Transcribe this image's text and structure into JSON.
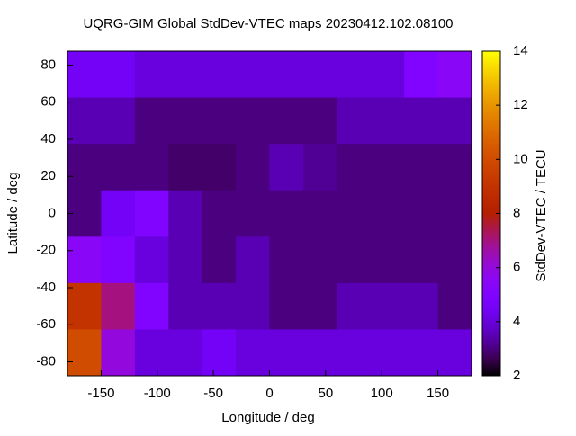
{
  "chart_data": {
    "type": "heatmap",
    "title": "UQRG-GIM Global StdDev-VTEC maps 20230412.102.08100",
    "x_label": "Longitude / deg",
    "y_label": "Latitude / deg",
    "colorbar_label": "StdDev-VTEC / TECU",
    "colormap": "gnuplot",
    "x": [
      -165,
      -135,
      -105,
      -75,
      -45,
      -15,
      15,
      45,
      75,
      105,
      135,
      165
    ],
    "y": [
      75,
      50,
      25,
      0,
      -25,
      -50,
      -75
    ],
    "z": [
      [
        4.5,
        4.5,
        4,
        4,
        4,
        4,
        4,
        4,
        4,
        4,
        5,
        5.5
      ],
      [
        3.5,
        3.5,
        3,
        3,
        3,
        3,
        3,
        3,
        3.5,
        3.5,
        3.5,
        3.5
      ],
      [
        3,
        3,
        3,
        2.8,
        2.8,
        3,
        3.5,
        3.2,
        3,
        3,
        3,
        3
      ],
      [
        3,
        4.5,
        5,
        3.5,
        3,
        3,
        3,
        3,
        3,
        3,
        3,
        3
      ],
      [
        5.5,
        5,
        4,
        3.5,
        3,
        3.5,
        3,
        3,
        3,
        3,
        3,
        3
      ],
      [
        9,
        7,
        5,
        3.5,
        3.5,
        3.5,
        3,
        3,
        3.5,
        3.5,
        3.5,
        3
      ],
      [
        10,
        6,
        4,
        4,
        4.5,
        4,
        4,
        4,
        4,
        4,
        4,
        4
      ]
    ],
    "xlim": [
      -180,
      180
    ],
    "ylim": [
      -87.5,
      87.5
    ],
    "xticks": [
      -150,
      -100,
      -50,
      0,
      50,
      100,
      150
    ],
    "yticks": [
      -80,
      -60,
      -40,
      -20,
      0,
      20,
      40,
      60,
      80
    ],
    "clim": [
      2,
      14
    ],
    "cticks": [
      2,
      4,
      6,
      8,
      10,
      12,
      14
    ]
  }
}
